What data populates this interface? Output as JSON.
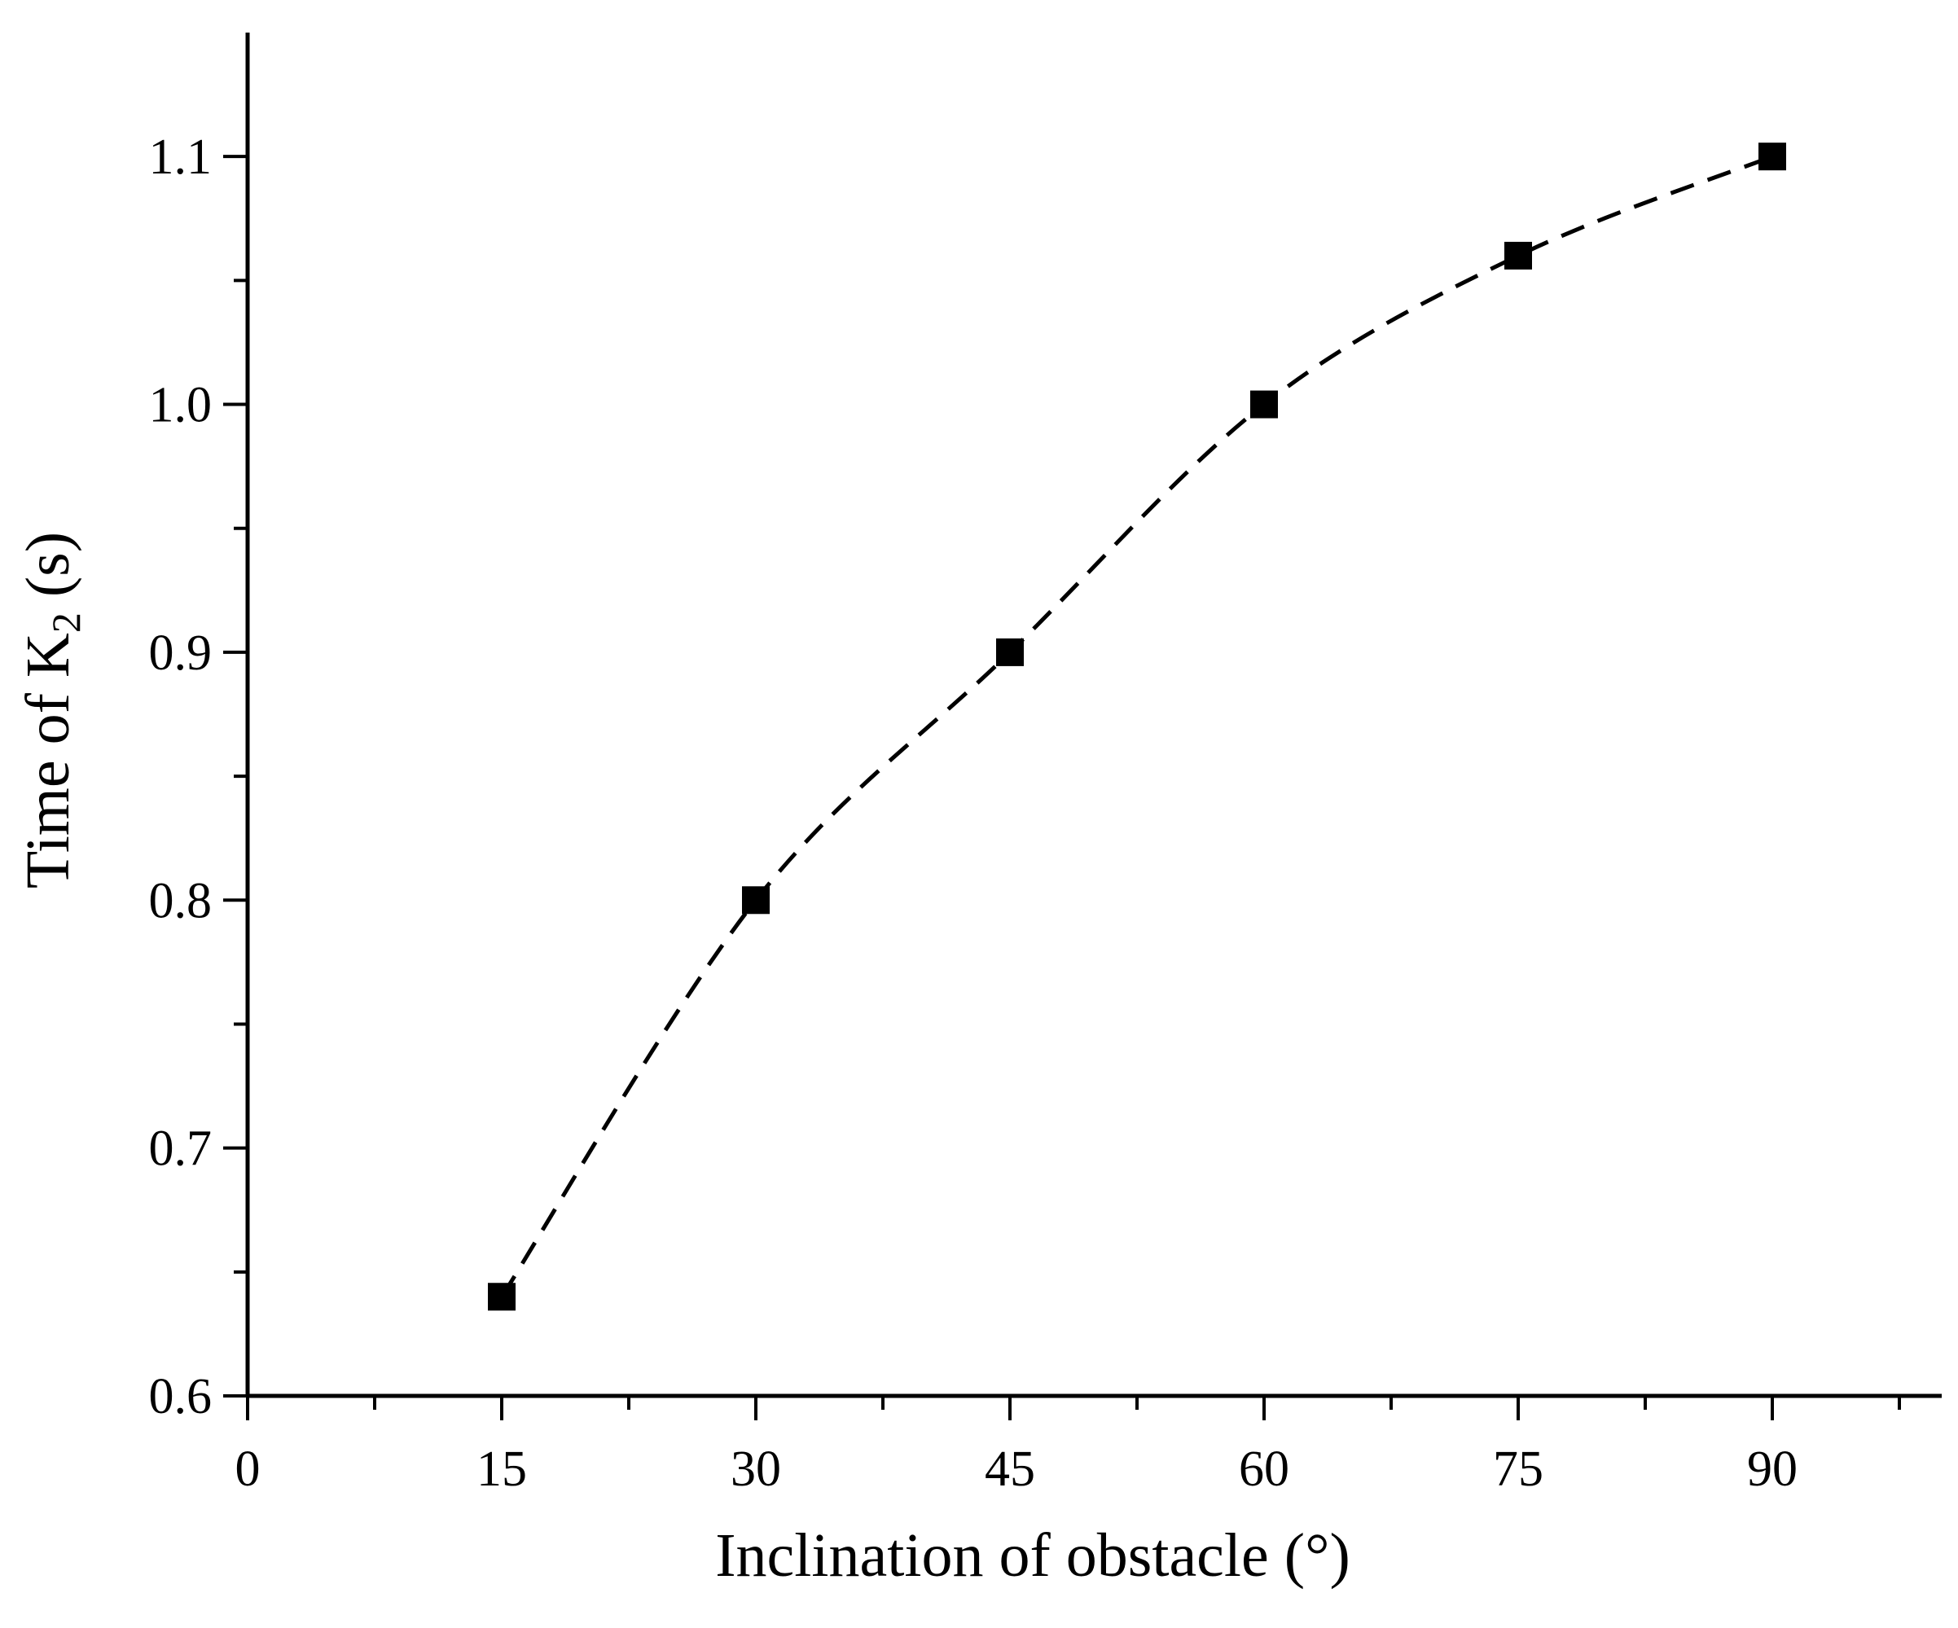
{
  "chart_data": {
    "type": "line",
    "title": "",
    "xlabel": "Inclination of obstacle (°)",
    "ylabel": {
      "prefix": "Time of  K",
      "subscript": "2",
      "suffix": " (s)"
    },
    "xlim": [
      0,
      100
    ],
    "ylim": [
      0.6,
      1.15
    ],
    "x_ticks": [
      0,
      15,
      30,
      45,
      60,
      75,
      90
    ],
    "x_minor_ticks": [
      7.5,
      22.5,
      37.5,
      52.5,
      67.5,
      82.5,
      97.5
    ],
    "y_ticks": [
      0.6,
      0.7,
      0.8,
      0.9,
      1.0,
      1.1
    ],
    "y_minor_ticks": [
      0.65,
      0.75,
      0.85,
      0.95,
      1.05
    ],
    "y_tick_decimals": 1,
    "grid": false,
    "legend": "none",
    "series": [
      {
        "marker": "square",
        "line_style": "dashed",
        "color": "#000000",
        "x": [
          15,
          30,
          45,
          60,
          75,
          90
        ],
        "y": [
          0.64,
          0.8,
          0.9,
          1.0,
          1.06,
          1.1
        ]
      }
    ]
  }
}
